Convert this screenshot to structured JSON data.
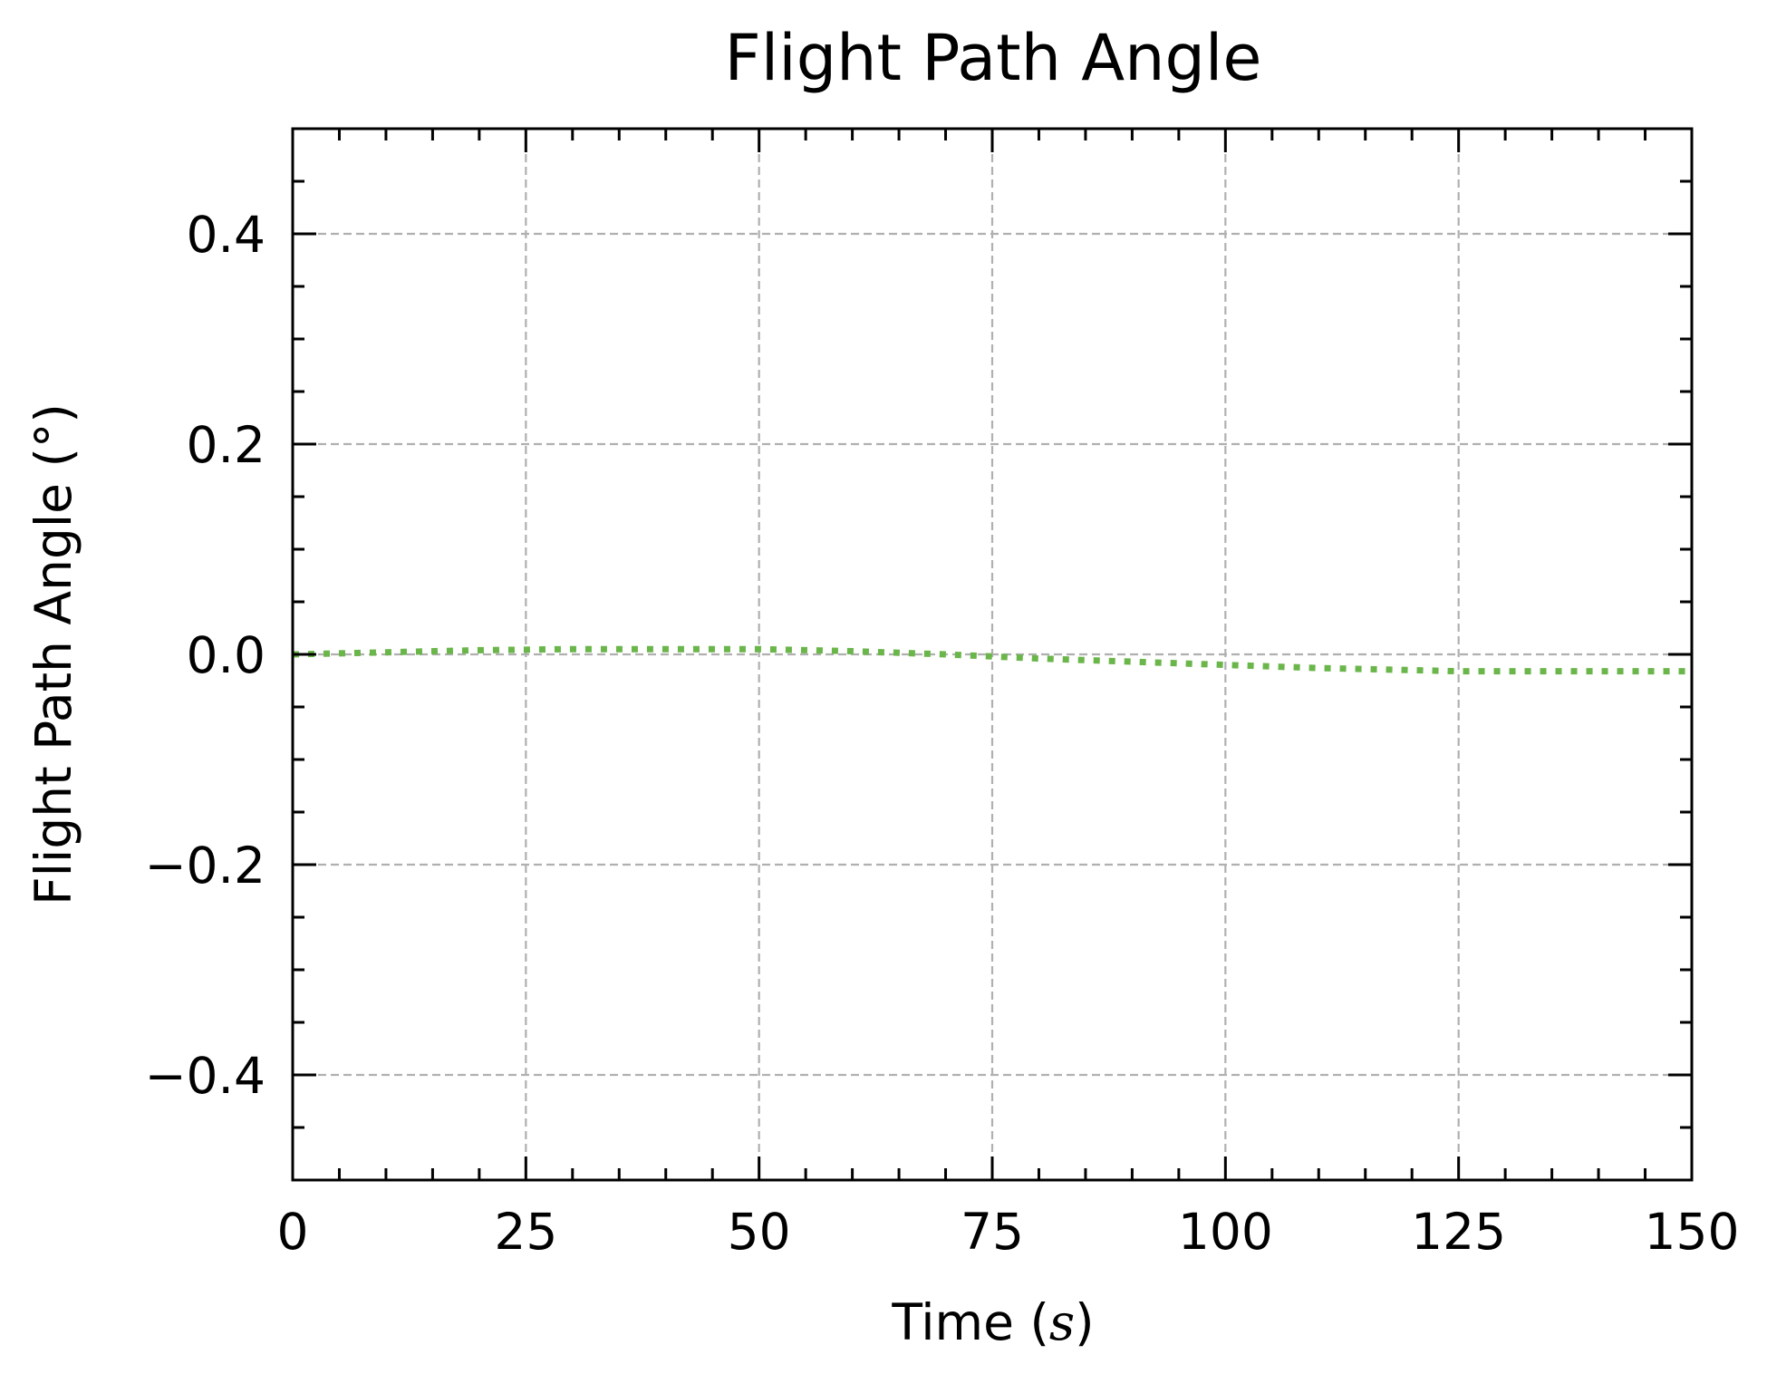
{
  "chart_data": {
    "type": "line",
    "title": "Flight Path Angle",
    "xlabel": "Time",
    "xlabel_unit": "s",
    "ylabel": "Flight Path Angle (°)",
    "xlim": [
      0,
      150
    ],
    "ylim": [
      -0.5,
      0.5
    ],
    "xticks": [
      0,
      25,
      50,
      75,
      100,
      125,
      150
    ],
    "xtick_labels": [
      "0",
      "25",
      "50",
      "75",
      "100",
      "125",
      "150"
    ],
    "yticks": [
      -0.4,
      -0.2,
      0.0,
      0.2,
      0.4
    ],
    "ytick_labels": [
      "−0.4",
      "−0.2",
      "0.0",
      "0.2",
      "0.4"
    ],
    "x_minor_step": 5,
    "y_minor_step": 0.05,
    "grid": true,
    "grid_style": "dashed",
    "series": [
      {
        "color": "#6ab64a",
        "style": "dotted",
        "x": [
          0,
          10,
          20,
          30,
          40,
          50,
          60,
          70,
          75,
          80,
          90,
          100,
          110,
          120,
          125,
          130,
          140,
          150
        ],
        "y": [
          0.0,
          0.002,
          0.004,
          0.005,
          0.005,
          0.005,
          0.003,
          0.0,
          -0.002,
          -0.004,
          -0.007,
          -0.01,
          -0.013,
          -0.015,
          -0.016,
          -0.016,
          -0.016,
          -0.016
        ]
      }
    ]
  }
}
